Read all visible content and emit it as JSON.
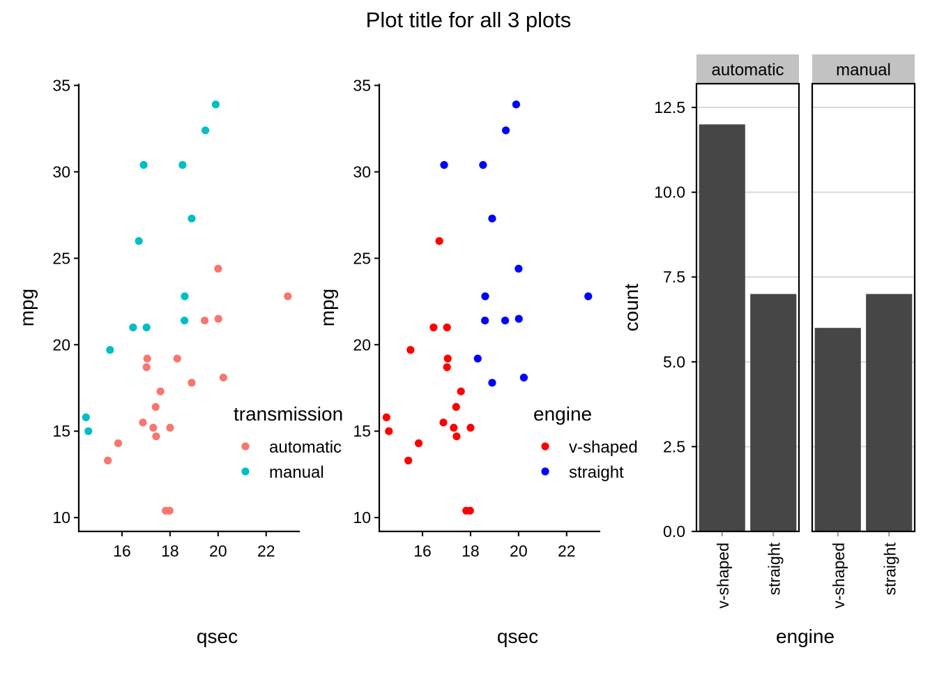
{
  "title": "Plot title for all 3 plots",
  "colors": {
    "automatic": "#F8766D",
    "manual": "#00BFC4",
    "v_shaped": "#FF0000",
    "straight": "#0000FF",
    "bar_fill": "#464646",
    "strip_fill": "#C2C2C2",
    "gridline": "#D9D9D9"
  },
  "chart_data": [
    {
      "type": "scatter",
      "xlabel": "qsec",
      "ylabel": "mpg",
      "xlim": [
        14.2,
        23.4
      ],
      "ylim": [
        9.2,
        35.1
      ],
      "xticks": [
        16,
        18,
        20,
        22
      ],
      "yticks": [
        10,
        15,
        20,
        25,
        30,
        35
      ],
      "legend": {
        "title": "transmission",
        "position": "right-inside",
        "entries": [
          "automatic",
          "manual"
        ]
      },
      "series": [
        {
          "name": "automatic",
          "color": "#F8766D",
          "points": [
            [
              19.44,
              21.4
            ],
            [
              17.02,
              18.7
            ],
            [
              20.22,
              18.1
            ],
            [
              15.84,
              14.3
            ],
            [
              20.0,
              24.4
            ],
            [
              22.9,
              22.8
            ],
            [
              18.3,
              19.2
            ],
            [
              18.9,
              17.8
            ],
            [
              17.4,
              16.4
            ],
            [
              17.6,
              17.3
            ],
            [
              18.0,
              15.2
            ],
            [
              17.98,
              10.4
            ],
            [
              17.82,
              10.4
            ],
            [
              17.42,
              14.7
            ],
            [
              20.01,
              21.5
            ],
            [
              16.87,
              15.5
            ],
            [
              17.3,
              15.2
            ],
            [
              15.41,
              13.3
            ],
            [
              17.05,
              19.2
            ]
          ]
        },
        {
          "name": "manual",
          "color": "#00BFC4",
          "points": [
            [
              16.46,
              21.0
            ],
            [
              17.02,
              21.0
            ],
            [
              18.61,
              22.8
            ],
            [
              19.47,
              32.4
            ],
            [
              18.52,
              30.4
            ],
            [
              19.9,
              33.9
            ],
            [
              18.9,
              27.3
            ],
            [
              16.7,
              26.0
            ],
            [
              16.9,
              30.4
            ],
            [
              14.5,
              15.8
            ],
            [
              15.5,
              19.7
            ],
            [
              14.6,
              15.0
            ],
            [
              18.6,
              21.4
            ]
          ]
        }
      ]
    },
    {
      "type": "scatter",
      "xlabel": "qsec",
      "ylabel": "mpg",
      "xlim": [
        14.2,
        23.4
      ],
      "ylim": [
        9.2,
        35.1
      ],
      "xticks": [
        16,
        18,
        20,
        22
      ],
      "yticks": [
        10,
        15,
        20,
        25,
        30,
        35
      ],
      "legend": {
        "title": "engine",
        "position": "right-inside",
        "entries": [
          "v-shaped",
          "straight"
        ]
      },
      "series": [
        {
          "name": "v-shaped",
          "color": "#FF0000",
          "points": [
            [
              16.46,
              21.0
            ],
            [
              17.02,
              21.0
            ],
            [
              17.02,
              18.7
            ],
            [
              15.84,
              14.3
            ],
            [
              17.4,
              16.4
            ],
            [
              17.6,
              17.3
            ],
            [
              18.0,
              15.2
            ],
            [
              17.98,
              10.4
            ],
            [
              17.82,
              10.4
            ],
            [
              17.42,
              14.7
            ],
            [
              16.87,
              15.5
            ],
            [
              17.3,
              15.2
            ],
            [
              15.41,
              13.3
            ],
            [
              17.05,
              19.2
            ],
            [
              16.7,
              26.0
            ],
            [
              14.5,
              15.8
            ],
            [
              15.5,
              19.7
            ],
            [
              14.6,
              15.0
            ]
          ]
        },
        {
          "name": "straight",
          "color": "#0000FF",
          "points": [
            [
              18.61,
              22.8
            ],
            [
              19.44,
              21.4
            ],
            [
              20.22,
              18.1
            ],
            [
              20.0,
              24.4
            ],
            [
              22.9,
              22.8
            ],
            [
              18.3,
              19.2
            ],
            [
              18.9,
              17.8
            ],
            [
              19.47,
              32.4
            ],
            [
              18.52,
              30.4
            ],
            [
              19.9,
              33.9
            ],
            [
              20.01,
              21.5
            ],
            [
              18.9,
              27.3
            ],
            [
              16.9,
              30.4
            ],
            [
              18.6,
              21.4
            ]
          ]
        }
      ]
    },
    {
      "type": "bar",
      "xlabel": "engine",
      "ylabel": "count",
      "ylim": [
        0,
        13.2
      ],
      "yticks": [
        0.0,
        2.5,
        5.0,
        7.5,
        10.0,
        12.5
      ],
      "ytick_labels": [
        "0.0",
        "2.5",
        "5.0",
        "7.5",
        "10.0",
        "12.5"
      ],
      "categories": [
        "v-shaped",
        "straight"
      ],
      "facets": [
        {
          "label": "automatic",
          "values": [
            12,
            7
          ]
        },
        {
          "label": "manual",
          "values": [
            6,
            7
          ]
        }
      ],
      "grid": true
    }
  ]
}
